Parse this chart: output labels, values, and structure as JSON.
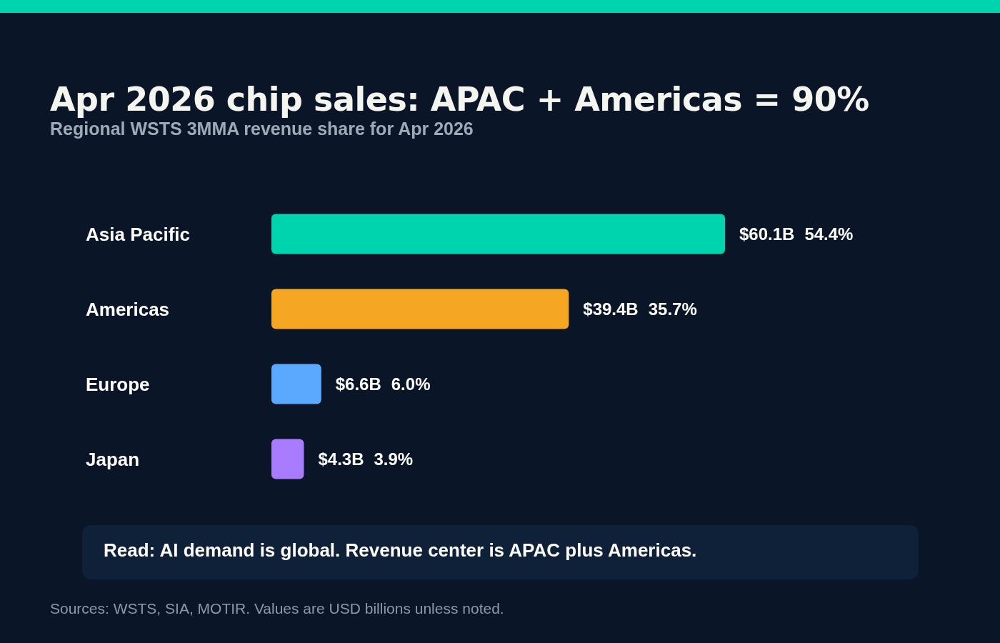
{
  "chart_data": {
    "type": "bar",
    "orientation": "horizontal",
    "title": "Apr 2026 chip sales: APAC + Americas = 90%",
    "subtitle": "Regional WSTS 3MMA revenue share for Apr 2026",
    "categories": [
      "Asia Pacific",
      "Americas",
      "Europe",
      "Japan"
    ],
    "values": [
      60.1,
      39.4,
      6.6,
      4.3
    ],
    "colors": [
      "#00d4ae",
      "#f5a623",
      "#5aa9ff",
      "#a97cff"
    ],
    "value_labels": [
      "$60.1B",
      "$39.4B",
      "$6.6B",
      "$4.3B"
    ],
    "annotations": [
      "54.4%",
      "35.7%",
      "6.0%",
      "3.9%",
      "Read: AI demand is global. Revenue center is APAC plus Americas.",
      "Sources: WSTS, SIA, MOTIR. Values are USD billions unless noted."
    ]
  }
}
